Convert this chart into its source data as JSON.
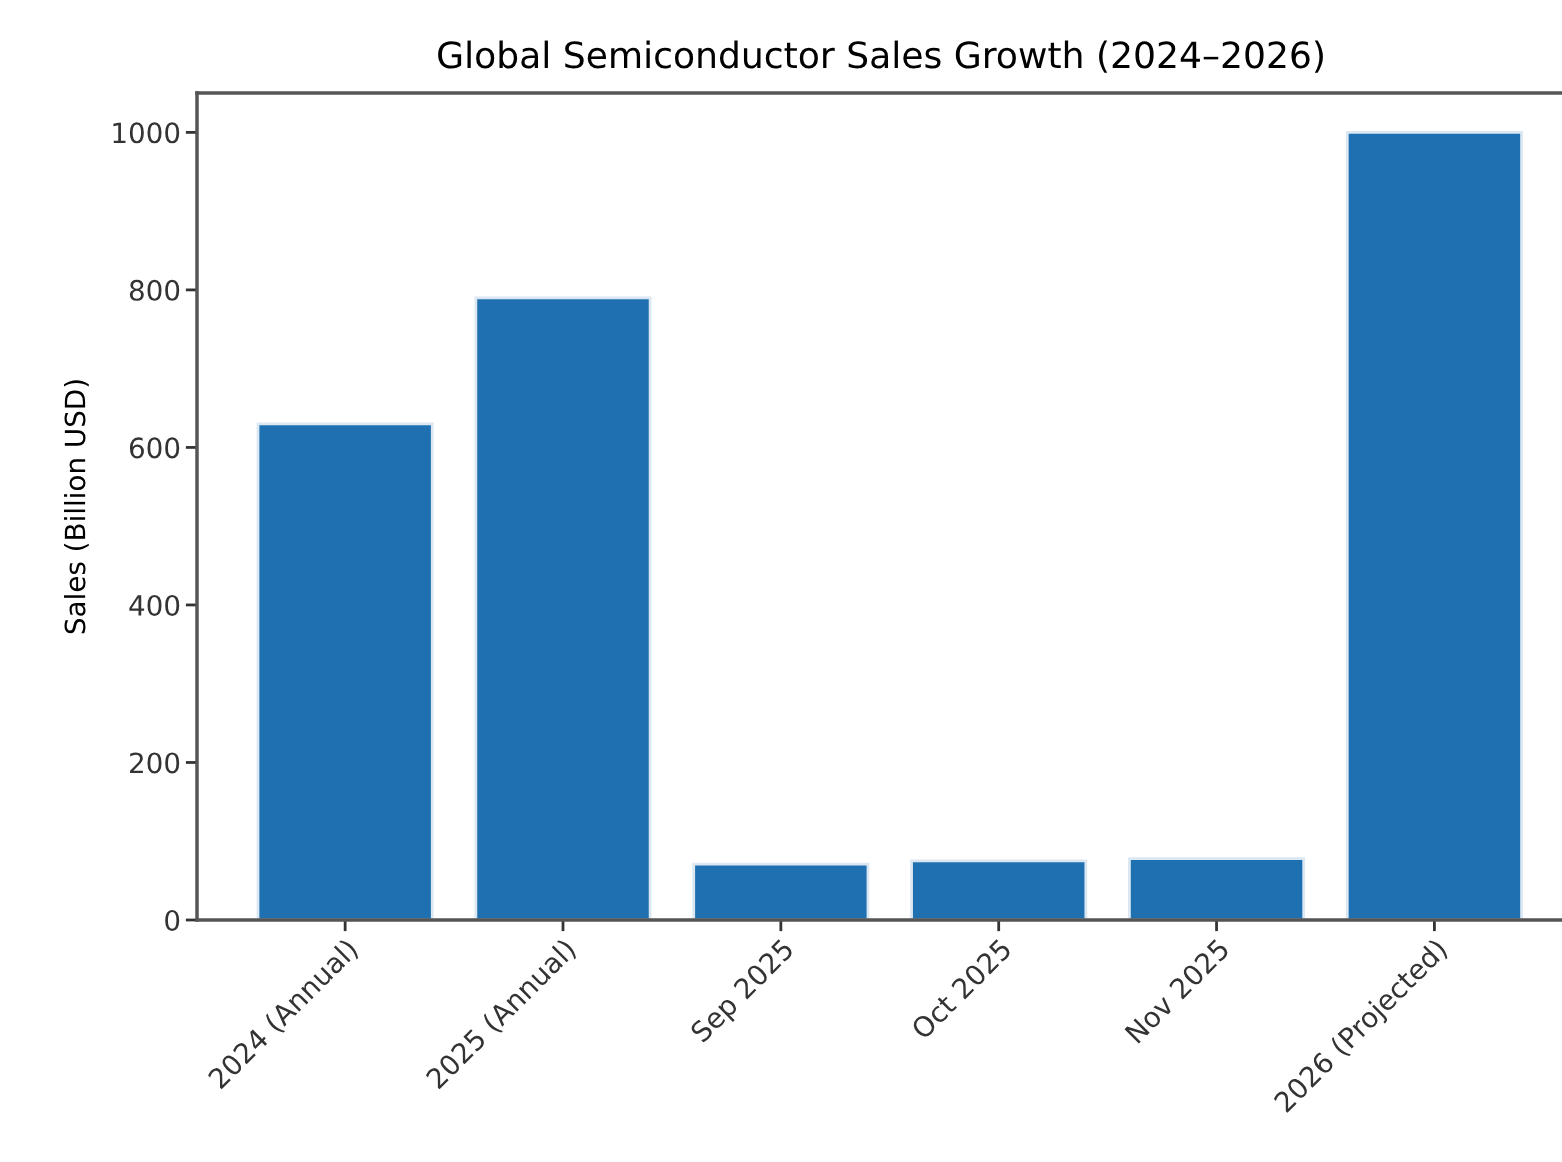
{
  "chart_data": {
    "type": "bar",
    "title": "Global Semiconductor Sales Growth (2024–2026)",
    "ylabel": "Sales (Billion USD)",
    "categories": [
      "2024 (Annual)",
      "2025 (Annual)",
      "Sep 2025",
      "Oct 2025",
      "Nov 2025",
      "2026 (Projected)"
    ],
    "values": [
      630,
      790,
      71,
      75,
      78,
      1000
    ],
    "color": "#1f70b0",
    "ylim": [
      0,
      1050
    ],
    "yticks": [
      0,
      200,
      400,
      600,
      800,
      1000
    ],
    "grid": false,
    "legend": false
  }
}
